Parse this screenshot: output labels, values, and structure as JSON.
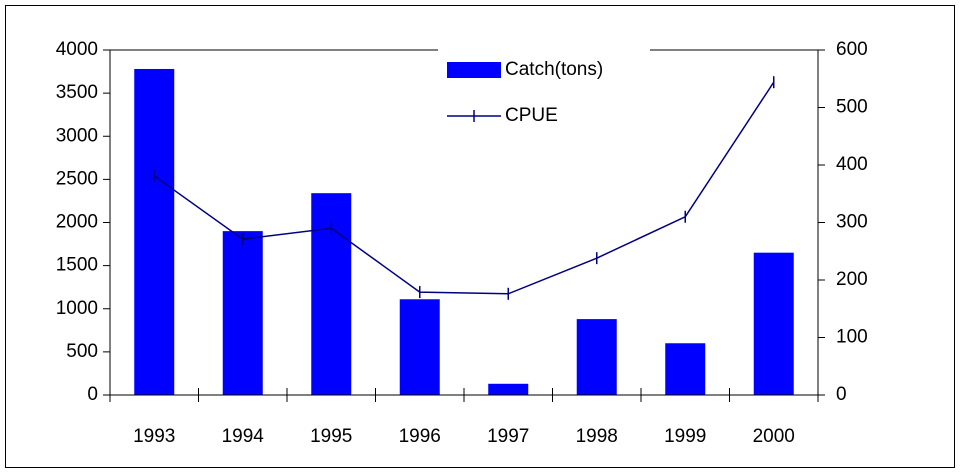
{
  "chart_data": {
    "type": "bar_line",
    "categories": [
      "1993",
      "1994",
      "1995",
      "1996",
      "1997",
      "1998",
      "1999",
      "2000"
    ],
    "series": [
      {
        "name": "Catch(tons)",
        "color": "#0000ff",
        "type": "bar",
        "values": [
          3780,
          1900,
          2340,
          1110,
          130,
          880,
          600,
          1650
        ]
      },
      {
        "name": "CPUE",
        "color": "#000080",
        "type": "line",
        "axis": "y2",
        "values": [
          381,
          271,
          290,
          179,
          176,
          238,
          310,
          544
        ]
      }
    ],
    "ylim": [
      0,
      4000
    ],
    "yticks": [
      0,
      500,
      1000,
      1500,
      2000,
      2500,
      3000,
      3500,
      4000
    ],
    "y2lim": [
      0,
      600
    ],
    "y2ticks": [
      0,
      100,
      200,
      300,
      400,
      500,
      600
    ],
    "grid": false,
    "legend": "top"
  }
}
